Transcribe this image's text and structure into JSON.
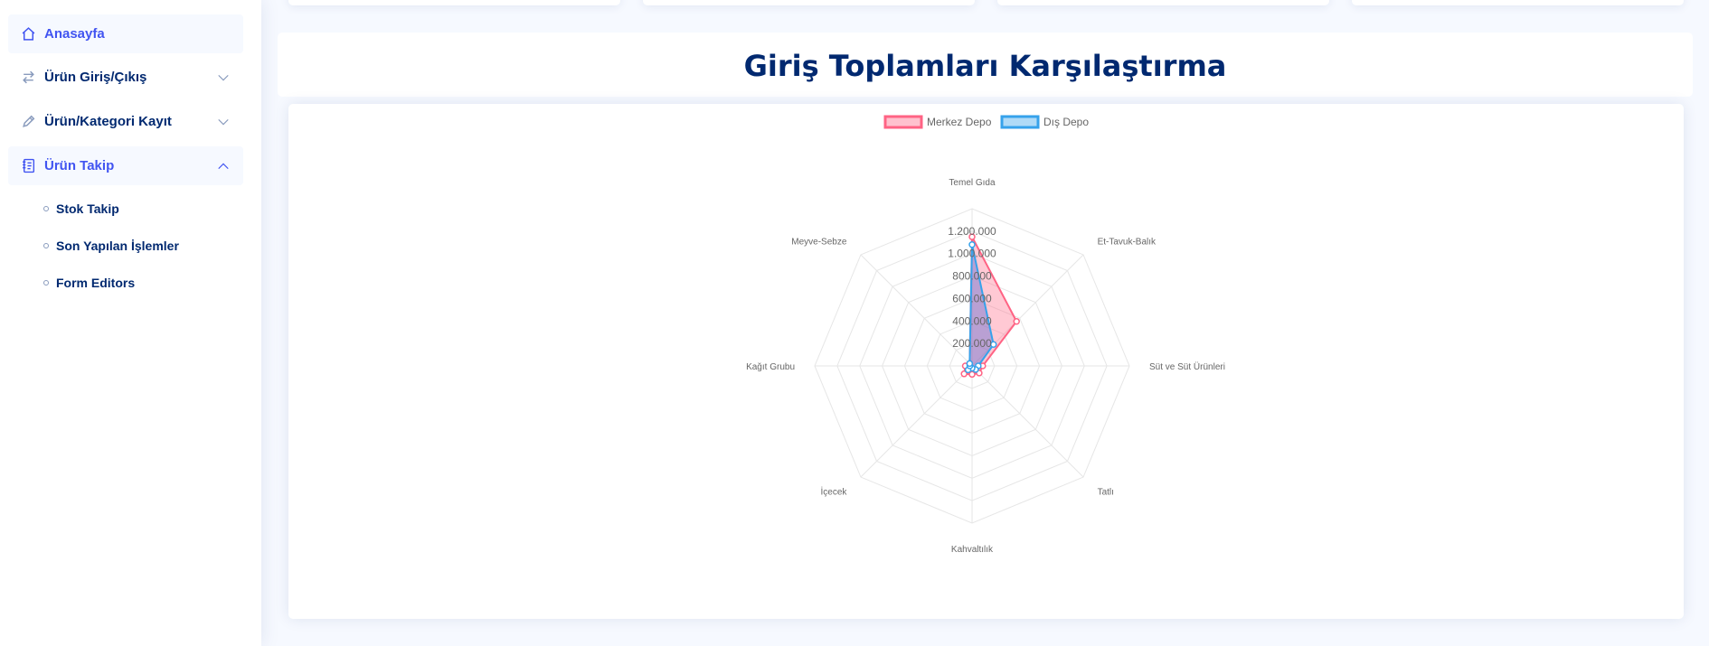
{
  "sidebar": {
    "items": [
      {
        "label": "Anasayfa",
        "icon": "home-icon",
        "active": true
      },
      {
        "label": "Ürün Giriş/Çıkış",
        "icon": "arrows-left-right-icon",
        "chevron": "down"
      },
      {
        "label": "Ürün/Kategori Kayıt",
        "icon": "pencil-icon",
        "chevron": "down"
      },
      {
        "label": "Ürün Takip",
        "icon": "journal-icon",
        "chevron": "up",
        "active": true
      }
    ],
    "subitems": [
      {
        "label": "Stok Takip"
      },
      {
        "label": "Son Yapılan İşlemler"
      },
      {
        "label": "Form Editors"
      }
    ]
  },
  "page": {
    "title": "Giriş Toplamları Karşılaştırma"
  },
  "colors": {
    "accent": "#4154f1",
    "navy": "#012970",
    "series1": "#ff6384",
    "series2": "#36a2eb"
  },
  "chart_data": {
    "type": "radar",
    "title": "",
    "categories": [
      "Temel Gıda",
      "Et-Tavuk-Balık",
      "Süt ve Süt Ürünleri",
      "Tatlı",
      "Kahvaltılık",
      "İçecek",
      "Kağıt Grubu",
      "Meyve-Sebze"
    ],
    "series": [
      {
        "name": "Merkez Depo",
        "values": [
          1150000,
          560000,
          95000,
          90000,
          75000,
          100000,
          60000,
          30000
        ],
        "color": "#ff6384"
      },
      {
        "name": "Dış Depo",
        "values": [
          1080000,
          270000,
          55000,
          45000,
          20000,
          50000,
          20000,
          30000
        ],
        "color": "#36a2eb"
      }
    ],
    "ticks": [
      "200.000",
      "400.000",
      "600.000",
      "800.000",
      "1.000.000",
      "1.200.000"
    ],
    "rmax": 1400000,
    "grid": true,
    "legend_position": "top"
  }
}
